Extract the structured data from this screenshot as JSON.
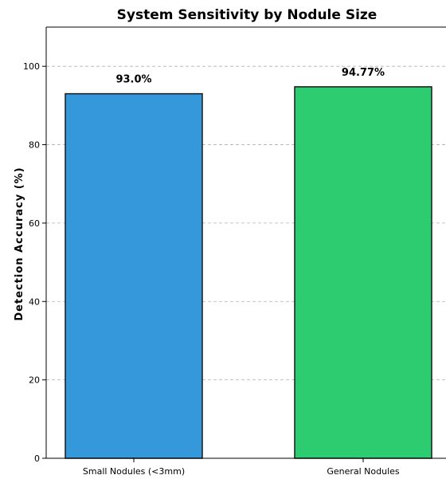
{
  "chart_data": {
    "type": "bar",
    "title": "System Sensitivity by Nodule Size",
    "xlabel": "",
    "ylabel": "Detection Accuracy (%)",
    "categories": [
      "Small Nodules (<3mm)",
      "General Nodules"
    ],
    "values": [
      93.0,
      94.77
    ],
    "data_labels": [
      "93.0%",
      "94.77%"
    ],
    "colors": [
      "#3498db",
      "#2ecc71"
    ],
    "edge_color": "#1a1a1a",
    "ylim": [
      0,
      110
    ],
    "yticks": [
      0,
      20,
      40,
      60,
      80,
      100
    ],
    "ytick_labels": [
      "0",
      "20",
      "40",
      "60",
      "80",
      "100"
    ],
    "grid": true,
    "grid_axis": "y",
    "grid_style": "dashed"
  }
}
